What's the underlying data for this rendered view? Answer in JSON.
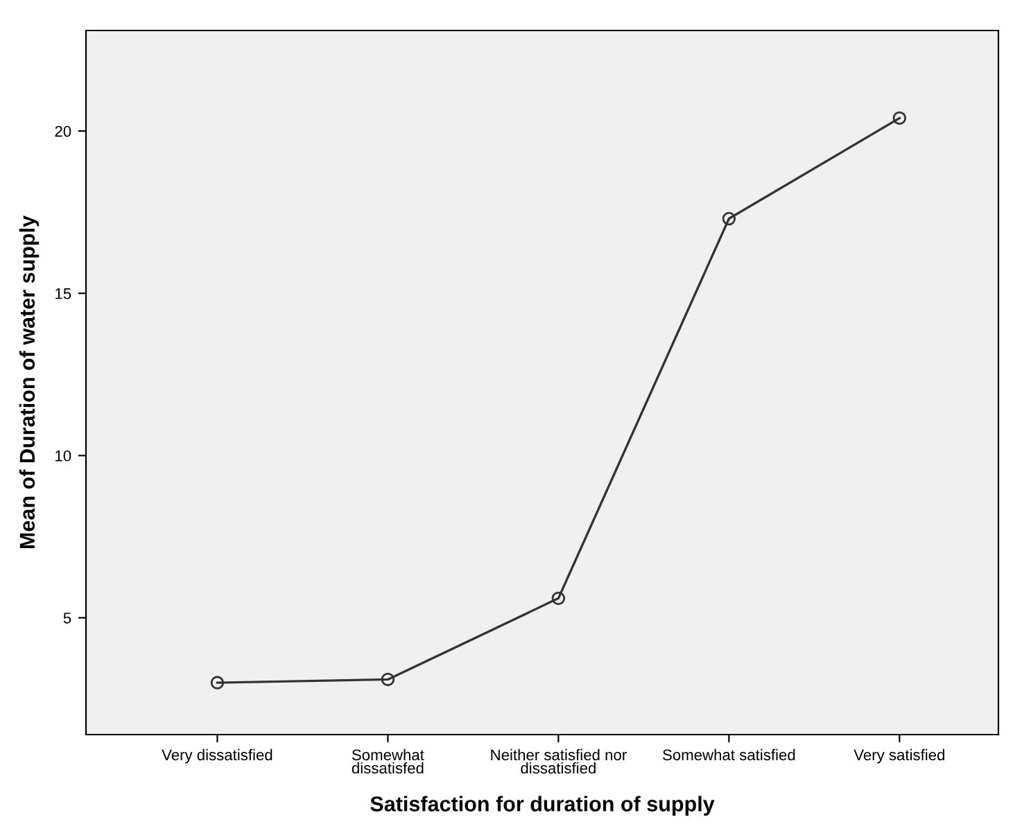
{
  "chart_data": {
    "type": "line",
    "xlabel": "Satisfaction for duration of supply",
    "ylabel": "Mean of Duration of water supply",
    "categories": [
      "Very dissatisfied",
      "Somewhat\ndissatisfed",
      "Neither satisfied nor\ndissatisfied",
      "Somewhat satisfied",
      "Very satisfied"
    ],
    "series": [
      {
        "color": "#333333",
        "values": [
          3.0,
          3.1,
          5.6,
          17.3,
          20.4
        ]
      }
    ],
    "ylim": [
      1.4,
      23.1
    ],
    "yticks": [
      5,
      10,
      15,
      20
    ],
    "grid": false,
    "legend": false,
    "marker": "circle",
    "line_style": "solid"
  }
}
